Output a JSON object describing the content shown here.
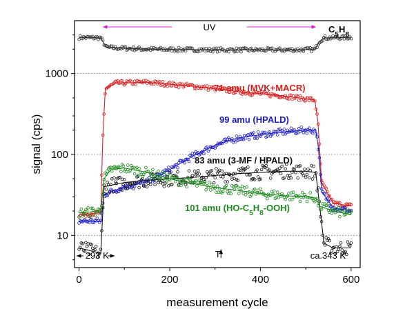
{
  "chart_data": {
    "type": "scatter",
    "xlabel": "measurement cycle",
    "ylabel": "signal (cps)",
    "xlim": [
      -10,
      620
    ],
    "ylim": [
      4,
      4500
    ],
    "log_y": true,
    "x_ticks": [
      0,
      200,
      400,
      600
    ],
    "x_tick_labels": [
      "0",
      "200",
      "400",
      "600"
    ],
    "y_ticks": [
      10,
      100,
      1000
    ],
    "y_tick_labels": [
      "10",
      "100",
      "1000"
    ],
    "y_gridlines": [
      10,
      100,
      1000
    ],
    "uv_period": {
      "label": "UV",
      "x_start": 50,
      "x_end": 525
    },
    "series": [
      {
        "name": "C5H8",
        "label_parts": [
          {
            "t": "C"
          },
          {
            "t": "5",
            "sub": true
          },
          {
            "t": "H"
          },
          {
            "t": "8",
            "sub": true
          }
        ],
        "color": "#333333",
        "points": [
          [
            0,
            2800
          ],
          [
            48,
            2760
          ],
          [
            60,
            2100
          ],
          [
            150,
            2000
          ],
          [
            300,
            1960
          ],
          [
            450,
            1960
          ],
          [
            520,
            1980
          ],
          [
            530,
            2500
          ],
          [
            540,
            2760
          ],
          [
            600,
            2800
          ]
        ]
      },
      {
        "name": "71 amu (MVK+MACR)",
        "color": "#d42020",
        "points": [
          [
            0,
            18
          ],
          [
            48,
            19
          ],
          [
            52,
            150
          ],
          [
            58,
            650
          ],
          [
            80,
            760
          ],
          [
            150,
            780
          ],
          [
            250,
            700
          ],
          [
            350,
            600
          ],
          [
            450,
            530
          ],
          [
            520,
            470
          ],
          [
            527,
            250
          ],
          [
            535,
            45
          ],
          [
            560,
            25
          ],
          [
            600,
            23
          ]
        ]
      },
      {
        "name": "99 amu (HPALD)",
        "color": "#1c1cc4",
        "points": [
          [
            0,
            15
          ],
          [
            48,
            15
          ],
          [
            55,
            32
          ],
          [
            100,
            40
          ],
          [
            150,
            46
          ],
          [
            200,
            65
          ],
          [
            250,
            95
          ],
          [
            300,
            130
          ],
          [
            350,
            160
          ],
          [
            400,
            175
          ],
          [
            450,
            190
          ],
          [
            500,
            200
          ],
          [
            522,
            200
          ],
          [
            528,
            120
          ],
          [
            535,
            35
          ],
          [
            560,
            22
          ],
          [
            600,
            20
          ]
        ]
      },
      {
        "name": "83 amu (3-MF / HPALD)",
        "color": "#111111",
        "points": [
          [
            0,
            7
          ],
          [
            48,
            6
          ],
          [
            55,
            40
          ],
          [
            100,
            45
          ],
          [
            150,
            48
          ],
          [
            200,
            50
          ],
          [
            250,
            52
          ],
          [
            300,
            55
          ],
          [
            350,
            58
          ],
          [
            400,
            60
          ],
          [
            450,
            62
          ],
          [
            500,
            62
          ],
          [
            522,
            60
          ],
          [
            530,
            25
          ],
          [
            540,
            8
          ],
          [
            560,
            7
          ],
          [
            600,
            7
          ]
        ]
      },
      {
        "name": "101 amu (HO-C5H8-OOH)",
        "label_parts": [
          {
            "t": "101 amu (HO-C"
          },
          {
            "t": "5",
            "sub": true
          },
          {
            "t": "H"
          },
          {
            "t": "8",
            "sub": true
          },
          {
            "t": "-OOH)"
          }
        ],
        "color": "#1e8a1e",
        "points": [
          [
            0,
            19
          ],
          [
            48,
            20
          ],
          [
            55,
            50
          ],
          [
            70,
            65
          ],
          [
            100,
            68
          ],
          [
            150,
            60
          ],
          [
            200,
            50
          ],
          [
            250,
            44
          ],
          [
            300,
            39
          ],
          [
            350,
            36
          ],
          [
            400,
            33
          ],
          [
            450,
            31
          ],
          [
            500,
            30
          ],
          [
            522,
            29
          ],
          [
            530,
            23
          ],
          [
            560,
            20
          ],
          [
            600,
            18
          ]
        ]
      }
    ],
    "annotations": {
      "temp_left": "293 K",
      "temp_right": "ca.343 K",
      "t_marker": "T"
    }
  }
}
